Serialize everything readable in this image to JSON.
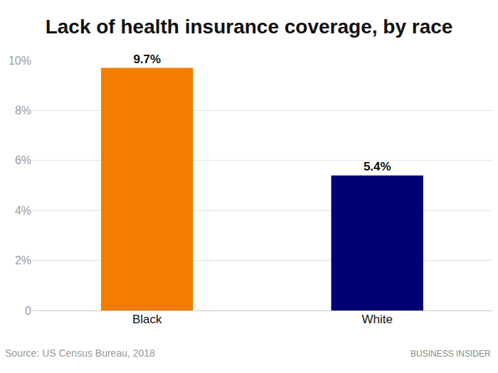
{
  "chart_data": {
    "type": "bar",
    "title": "Lack of health insurance coverage, by race",
    "categories": [
      "Black",
      "White"
    ],
    "values": [
      9.7,
      5.4
    ],
    "value_labels": [
      "9.7%",
      "5.4%"
    ],
    "data_labels": true,
    "colors": [
      "#f27d00",
      "#000073"
    ],
    "ylim": [
      0,
      10
    ],
    "yticks": [
      0,
      {
        "value": 2,
        "label": "2%"
      },
      {
        "value": 4,
        "label": "4%"
      },
      {
        "value": 6,
        "label": "6%"
      },
      {
        "value": 8,
        "label": "8%"
      },
      {
        "value": 10,
        "label": "10%"
      }
    ],
    "grid": true,
    "annotations": [
      "Source: US Census Bureau, 2018",
      "BUSINESS INSIDER"
    ]
  }
}
